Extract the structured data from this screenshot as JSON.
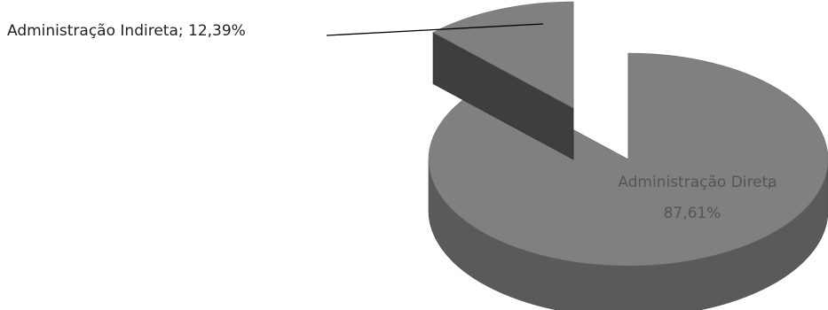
{
  "chart_data": {
    "type": "pie",
    "style": "3d-exploded",
    "title": "",
    "slices": [
      {
        "label": "Administração Direta",
        "value": 87.61,
        "value_label": "87,61%",
        "color": "#808080"
      },
      {
        "label": "Administração Indireta",
        "value": 12.39,
        "value_label": "12,39%",
        "color": "#808080"
      }
    ]
  },
  "colors": {
    "slice_top": "#808080",
    "slice_side": "#5a5a5a",
    "slice_face": "#3e3e3e",
    "label_dark": "#222222",
    "label_light": "#555555",
    "leader_line": "#000000"
  }
}
